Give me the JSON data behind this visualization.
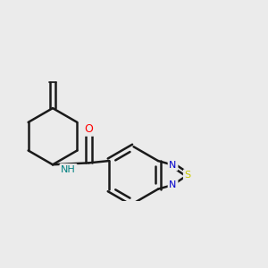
{
  "background_color": "#ebebeb",
  "bond_color": "#1a1a1a",
  "bond_width": 1.8,
  "atom_colors": {
    "O": "#ff0000",
    "N": "#0000cc",
    "S": "#cccc00",
    "NH": "#008080",
    "C": "#1a1a1a"
  },
  "font_size_atom": 9,
  "dbo": 0.055
}
